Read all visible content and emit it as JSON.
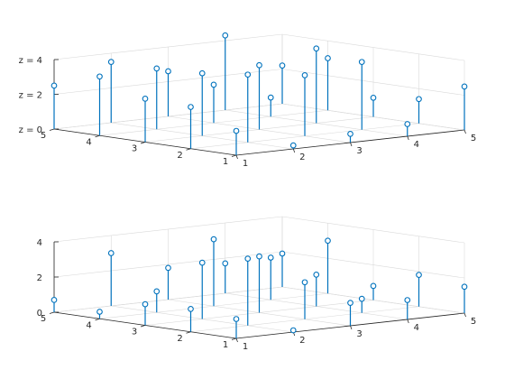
{
  "figure": {
    "background": "#ffffff",
    "stem_color": "#0072bd",
    "axis_color": "#262626",
    "grid_color": "#d9d9d9"
  },
  "chart_data": [
    {
      "type": "stem3",
      "grid": true,
      "x_ticks": [
        "1",
        "2",
        "3",
        "4",
        "5"
      ],
      "y_ticks": [
        "1",
        "2",
        "3",
        "4",
        "5"
      ],
      "z_ticks": [
        "z = 0",
        "z = 2",
        "z = 4"
      ],
      "z_tick_values": [
        0,
        2,
        4
      ],
      "xlim": [
        1,
        5
      ],
      "ylim": [
        1,
        5
      ],
      "zlim": [
        0,
        4
      ],
      "points": [
        [
          1,
          1,
          1.4
        ],
        [
          2,
          1,
          0.2
        ],
        [
          3,
          1,
          0.5
        ],
        [
          4,
          1,
          0.7
        ],
        [
          5,
          1,
          2.5
        ],
        [
          1,
          2,
          2.4
        ],
        [
          2,
          2,
          3.9
        ],
        [
          3,
          2,
          3.5
        ],
        [
          4,
          2,
          3.9
        ],
        [
          5,
          2,
          1.4
        ],
        [
          1,
          3,
          2.5
        ],
        [
          2,
          3,
          3.6
        ],
        [
          3,
          3,
          3.7
        ],
        [
          4,
          3,
          4.3
        ],
        [
          5,
          3,
          1.1
        ],
        [
          1,
          4,
          3.4
        ],
        [
          2,
          4,
          3.5
        ],
        [
          3,
          4,
          2.2
        ],
        [
          4,
          4,
          1.1
        ],
        [
          5,
          4,
          3.0
        ],
        [
          1,
          5,
          2.5
        ],
        [
          2,
          5,
          3.5
        ],
        [
          3,
          5,
          2.6
        ],
        [
          4,
          5,
          4.3
        ],
        [
          5,
          5,
          2.2
        ]
      ]
    },
    {
      "type": "stem3",
      "grid": true,
      "x_ticks": [
        "1",
        "2",
        "3",
        "4",
        "5"
      ],
      "y_ticks": [
        "1",
        "2",
        "3",
        "4",
        "5"
      ],
      "z_ticks": [
        "0",
        "2",
        "4"
      ],
      "z_tick_values": [
        0,
        2,
        4
      ],
      "xlim": [
        1,
        5
      ],
      "ylim": [
        1,
        5
      ],
      "zlim": [
        0,
        4
      ],
      "points": [
        [
          1,
          1,
          1.1
        ],
        [
          2,
          1,
          0.1
        ],
        [
          3,
          1,
          1.3
        ],
        [
          4,
          1,
          1.1
        ],
        [
          5,
          1,
          1.5
        ],
        [
          1,
          2,
          1.3
        ],
        [
          2,
          2,
          3.8
        ],
        [
          3,
          2,
          2.1
        ],
        [
          4,
          2,
          0.8
        ],
        [
          5,
          2,
          1.8
        ],
        [
          1,
          3,
          1.2
        ],
        [
          2,
          3,
          3.2
        ],
        [
          3,
          3,
          3.2
        ],
        [
          4,
          3,
          1.8
        ],
        [
          5,
          3,
          0.8
        ],
        [
          1,
          4,
          0.4
        ],
        [
          2,
          4,
          1.2
        ],
        [
          3,
          4,
          3.8
        ],
        [
          4,
          4,
          2.4
        ],
        [
          5,
          4,
          3.0
        ],
        [
          1,
          5,
          0.7
        ],
        [
          2,
          5,
          3.0
        ],
        [
          3,
          5,
          1.8
        ],
        [
          4,
          5,
          1.7
        ],
        [
          5,
          5,
          1.9
        ]
      ]
    }
  ]
}
